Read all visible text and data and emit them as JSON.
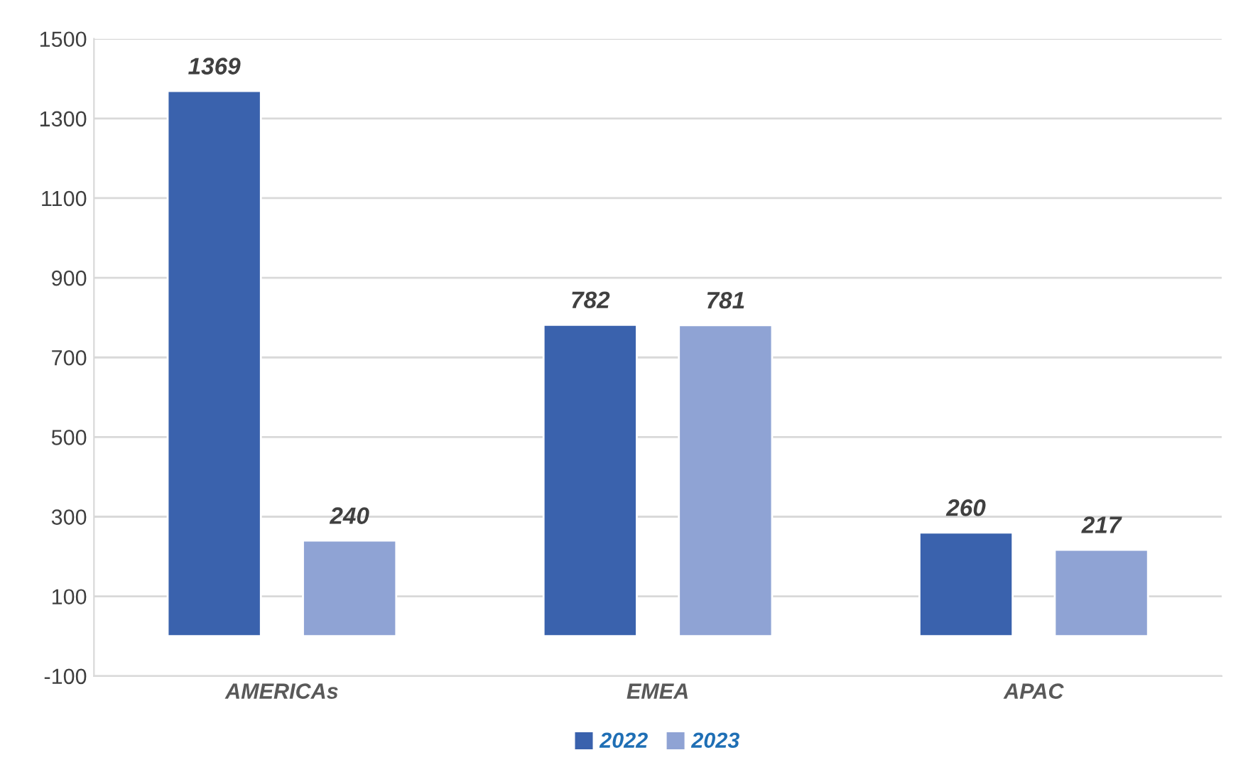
{
  "chart_data": {
    "type": "bar",
    "categories": [
      "AMERICAs",
      "EMEA",
      "APAC"
    ],
    "series": [
      {
        "name": "2022",
        "color": "#3a62ad",
        "values": [
          1369,
          782,
          260
        ]
      },
      {
        "name": "2023",
        "color": "#8fa3d4",
        "values": [
          240,
          781,
          217
        ]
      }
    ],
    "ylim": [
      -100,
      1500
    ],
    "yticks": [
      -100,
      100,
      300,
      500,
      700,
      900,
      1100,
      1300,
      1500
    ],
    "grid": "y",
    "legend": "bottom",
    "data_labels": true
  }
}
